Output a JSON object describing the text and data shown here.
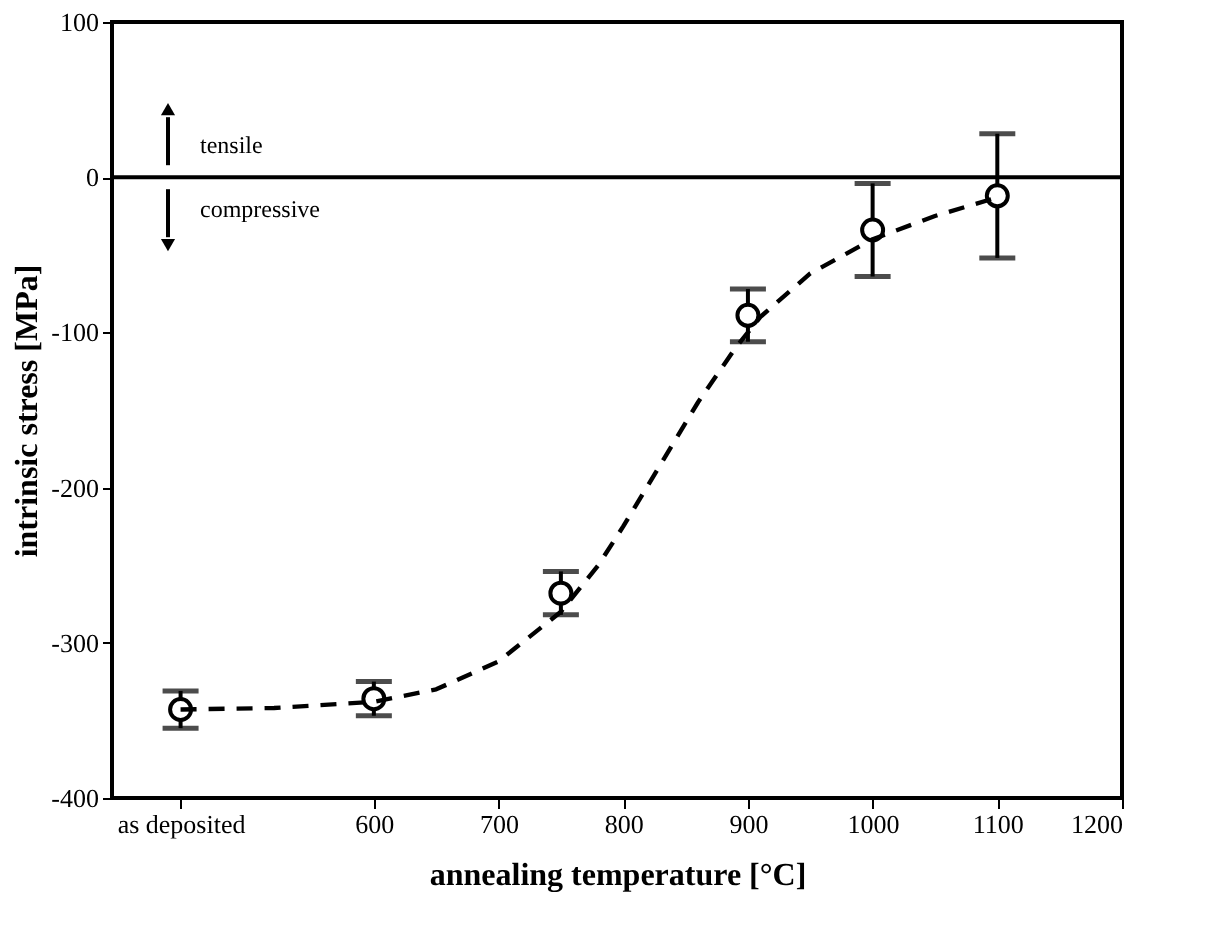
{
  "chart_data": {
    "type": "scatter",
    "xlabel": "annealing temperature [°C]",
    "ylabel": "intrinsic stress [MPa]",
    "xlim": [
      390,
      1200
    ],
    "xticks": [
      {
        "value": 445,
        "label": "as deposited"
      },
      600,
      700,
      800,
      900,
      1000,
      1100,
      1200
    ],
    "ylim": [
      -400,
      100
    ],
    "yticks": [
      -400,
      -300,
      -200,
      -100,
      0,
      100
    ],
    "grid": false,
    "annotations": [
      "tensile",
      "compressive"
    ],
    "ref_lines": [
      {
        "axis": "y",
        "value": 0,
        "color": "#000000",
        "line_style": "solid"
      }
    ],
    "series": [
      {
        "color": "#000000",
        "marker": "circle",
        "x": [
          445,
          600,
          750,
          900,
          1000,
          1100
        ],
        "values": [
          -343,
          -336,
          -268,
          -89,
          -34,
          -12
        ],
        "errors": [
          12,
          11,
          14,
          17,
          30,
          40
        ]
      },
      {
        "type": "line",
        "color": "#000000",
        "line_style": "dashed",
        "x": [
          445,
          520,
          600,
          650,
          700,
          750,
          780,
          800,
          830,
          860,
          890,
          910,
          950,
          1000,
          1050,
          1100
        ],
        "values": [
          -343,
          -342,
          -338,
          -330,
          -312,
          -280,
          -250,
          -225,
          -185,
          -145,
          -110,
          -90,
          -62,
          -40,
          -25,
          -13
        ]
      }
    ]
  }
}
